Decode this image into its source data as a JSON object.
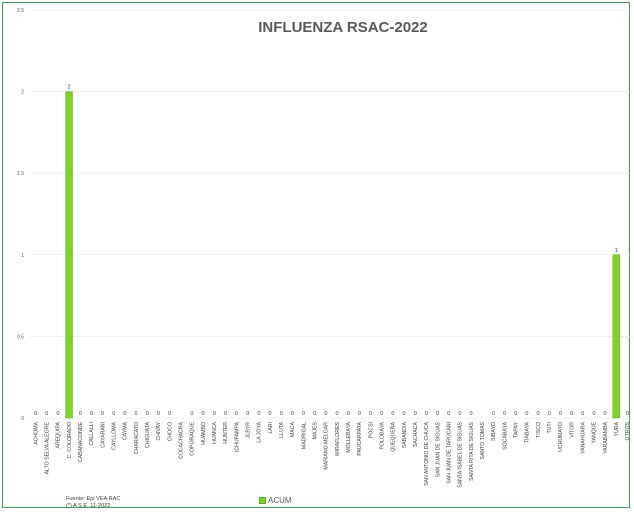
{
  "chart_data": {
    "type": "bar",
    "title": "INFLUENZA RSAC-2022",
    "xlabel": "",
    "ylabel": "",
    "ylim": [
      0,
      2.5
    ],
    "yticks": [
      "0",
      "0.5",
      "1",
      "1.5",
      "2",
      "2.5"
    ],
    "grid": true,
    "legend_position": "bottom",
    "bar_color": "#7ed321",
    "categories": [
      "ACHOMA",
      "ALTO SELVA ALEGRE",
      "AREQUIPA",
      "C. COLORADO",
      "CABANACONDE",
      "CALLALLI",
      "CAYARANI",
      "CAYLLOMA",
      "CAYMA",
      "CHARACATO",
      "CHIGUATA",
      "CHIVAY",
      "CHOCO",
      "COCACHACRA",
      "COPORAQUE",
      "HUAMBO",
      "HUANCA",
      "HUNTER",
      "ICHUPAMPA",
      "JLBYR",
      "LA JOYA",
      "LARI",
      "LLUTA",
      "MACA",
      "MADRIGAL",
      "MAJES",
      "MARIANO MELGAR",
      "MIRAFLORES",
      "MOLLEBAYA",
      "PAUCARPATA",
      "POCSI",
      "POLOBAYA",
      "QUEQUEÑA",
      "SABANDIA",
      "SACHACA",
      "SAN ANTONIO DE CHUCA",
      "SAN JUAN DE SIGUAS",
      "SAN JUAN DE TARUCANI",
      "SANTA ISABEL DE SIGUAS",
      "SANTA RITA DE SIGUAS",
      "SANTO TOMAS",
      "SIBAYO",
      "SOCABAYA",
      "TAPAY",
      "TIABAYA",
      "TISCO",
      "TUTI",
      "UCHUMAYO",
      "VITOR",
      "YANAHUARA",
      "YANQUE",
      "YARABAMBA",
      "YURA",
      "OTROS"
    ],
    "series": [
      {
        "name": "ACUM",
        "values": [
          0,
          0,
          0,
          2,
          0,
          0,
          0,
          0,
          0,
          0,
          0,
          0,
          0,
          null,
          0,
          0,
          0,
          0,
          0,
          0,
          0,
          0,
          0,
          0,
          0,
          0,
          0,
          0,
          0,
          0,
          0,
          0,
          0,
          0,
          0,
          0,
          0,
          0,
          0,
          0,
          null,
          0,
          0,
          0,
          0,
          0,
          0,
          0,
          0,
          0,
          0,
          0,
          1,
          0
        ]
      }
    ]
  },
  "footer": {
    "source": "Fuente: Epi VEA RAC",
    "note": "(*) A S.E. 11-2022"
  },
  "legend": {
    "label": "ACUM"
  }
}
